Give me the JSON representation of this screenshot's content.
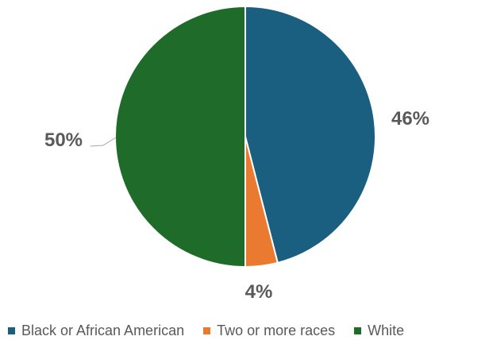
{
  "chart_data": {
    "type": "pie",
    "title": "",
    "legend_position": "bottom",
    "slices": [
      {
        "label": "Black or African American",
        "value": 46,
        "value_label": "46%",
        "color": "#1a5e80"
      },
      {
        "label": "Two or more races",
        "value": 4,
        "value_label": "4%",
        "color": "#e97a2f"
      },
      {
        "label": "White",
        "value": 50,
        "value_label": "50%",
        "color": "#1e6b2a"
      }
    ]
  }
}
